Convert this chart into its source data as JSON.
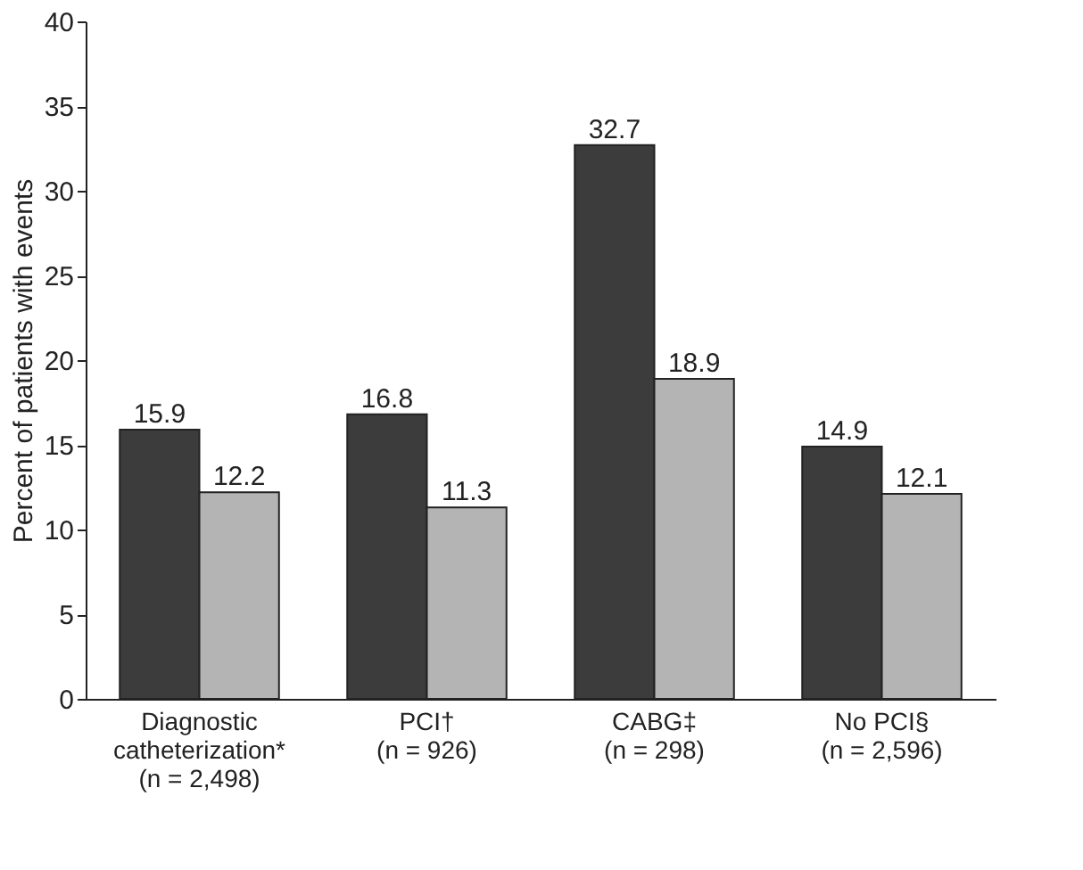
{
  "chart_data": {
    "type": "bar",
    "ylabel": "Percent of patients with events",
    "categories": [
      "Diagnostic\ncatheterization*\n(n = 2,498)",
      "PCI†\n(n = 926)",
      "CABG‡\n(n = 298)",
      "No PCI§\n(n = 2,596)"
    ],
    "series": [
      {
        "color": "#3c3c3c",
        "values": [
          15.9,
          16.8,
          32.7,
          14.9
        ]
      },
      {
        "color": "#b4b4b4",
        "values": [
          12.2,
          11.3,
          18.9,
          12.1
        ]
      }
    ],
    "ylim": [
      0,
      40
    ],
    "yticks": [
      0,
      5,
      10,
      15,
      20,
      25,
      30,
      35,
      40
    ],
    "data_labels": true,
    "grid": false,
    "legend": false
  }
}
